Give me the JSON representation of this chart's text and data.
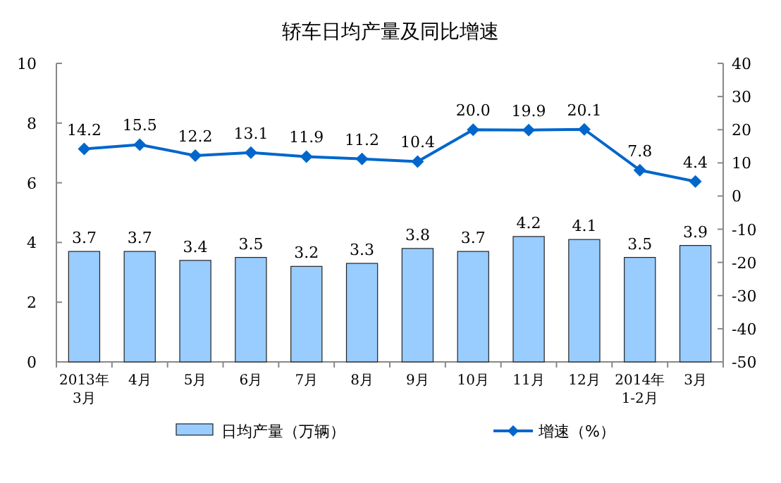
{
  "chart_data": {
    "type": "bar",
    "title": "轿车日均产量及同比增速",
    "categories": [
      "2013年\n3月",
      "4月",
      "5月",
      "6月",
      "7月",
      "8月",
      "9月",
      "10月",
      "11月",
      "12月",
      "2014年\n1-2月",
      "3月"
    ],
    "series": [
      {
        "name": "日均产量（万辆）",
        "color": "#99ccff",
        "values": [
          3.7,
          3.7,
          3.4,
          3.5,
          3.2,
          3.3,
          3.8,
          3.7,
          4.2,
          4.1,
          3.5,
          3.9
        ],
        "value_labels": [
          "3.7",
          "3.7",
          "3.4",
          "3.5",
          "3.2",
          "3.3",
          "3.8",
          "3.7",
          "4.2",
          "4.1",
          "3.5",
          "3.9"
        ]
      },
      {
        "name": "增速（%）",
        "type": "line",
        "axis": "y2",
        "color": "#0066cc",
        "marker": "diamond",
        "values": [
          14.2,
          15.5,
          12.2,
          13.1,
          11.9,
          11.2,
          10.4,
          20.0,
          19.9,
          20.1,
          7.8,
          4.4
        ],
        "value_labels": [
          "14.2",
          "15.5",
          "12.2",
          "13.1",
          "11.9",
          "11.2",
          "10.4",
          "20.0",
          "19.9",
          "20.1",
          "7.8",
          "4.4"
        ]
      }
    ],
    "ylim": [
      0,
      10
    ],
    "yticks": [
      0,
      2,
      4,
      6,
      8,
      10
    ],
    "y2lim": [
      -50,
      40
    ],
    "y2ticks": [
      -50,
      -40,
      -30,
      -20,
      -10,
      0,
      10,
      20,
      30,
      40
    ],
    "grid": false,
    "legend": "bottom"
  }
}
